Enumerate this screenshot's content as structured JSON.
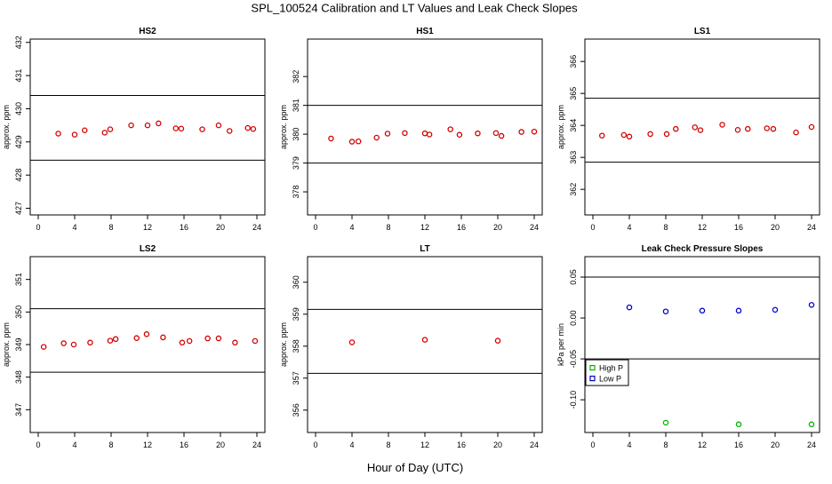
{
  "figure": {
    "title": "SPL_100524  Calibration and LT Values and Leak Check Slopes",
    "xlabel": "Hour of Day (UTC)"
  },
  "chart_data": [
    {
      "type": "scatter",
      "title": "HS2",
      "ylabel": "approx. ppm",
      "xlim": [
        0,
        24
      ],
      "ylim": [
        426.8,
        432.1
      ],
      "xticks": [
        0,
        4,
        8,
        12,
        16,
        20,
        24
      ],
      "yticks": [
        427,
        428,
        429,
        430,
        431,
        432
      ],
      "hlines": [
        428.45,
        430.4
      ],
      "point_color": "#d40000",
      "series": [
        {
          "x": [
            2.2,
            4.0,
            5.1,
            7.3,
            7.9,
            10.2,
            12.0,
            13.2,
            15.1,
            15.7,
            18.0,
            19.8,
            21.0,
            23.0,
            23.6
          ],
          "y": [
            429.25,
            429.22,
            429.35,
            429.28,
            429.38,
            429.5,
            429.5,
            429.56,
            429.41,
            429.4,
            429.38,
            429.5,
            429.33,
            429.42,
            429.39
          ]
        }
      ]
    },
    {
      "type": "scatter",
      "title": "HS1",
      "ylabel": "approx. ppm",
      "xlim": [
        0,
        24
      ],
      "ylim": [
        377.2,
        383.3
      ],
      "xticks": [
        0,
        4,
        8,
        12,
        16,
        20,
        24
      ],
      "yticks": [
        378,
        379,
        380,
        381,
        382
      ],
      "hlines": [
        379.0,
        381.0
      ],
      "point_color": "#d40000",
      "series": [
        {
          "x": [
            1.7,
            4.0,
            4.7,
            6.7,
            7.9,
            9.8,
            12.0,
            12.5,
            14.8,
            15.8,
            17.8,
            19.8,
            20.4,
            22.6,
            24.0
          ],
          "y": [
            379.85,
            379.74,
            379.75,
            379.88,
            380.02,
            380.04,
            380.03,
            379.99,
            380.17,
            379.98,
            380.03,
            380.04,
            379.94,
            380.08,
            380.09
          ]
        }
      ]
    },
    {
      "type": "scatter",
      "title": "LS1",
      "ylabel": "approx. ppm",
      "xlim": [
        0,
        24
      ],
      "ylim": [
        361.2,
        366.7
      ],
      "xticks": [
        0,
        4,
        8,
        12,
        16,
        20,
        24
      ],
      "yticks": [
        362,
        363,
        364,
        365,
        366
      ],
      "hlines": [
        362.85,
        364.85
      ],
      "point_color": "#d40000",
      "series": [
        {
          "x": [
            1.0,
            3.4,
            4.0,
            6.3,
            8.1,
            9.1,
            11.2,
            11.8,
            14.2,
            15.9,
            17.0,
            19.1,
            19.8,
            22.3,
            24.0
          ],
          "y": [
            363.68,
            363.7,
            363.65,
            363.73,
            363.73,
            363.89,
            363.94,
            363.85,
            364.02,
            363.86,
            363.89,
            363.91,
            363.89,
            363.78,
            363.95
          ]
        }
      ]
    },
    {
      "type": "scatter",
      "title": "LS2",
      "ylabel": "approx. ppm",
      "xlim": [
        0,
        24
      ],
      "ylim": [
        346.3,
        351.7
      ],
      "xticks": [
        0,
        4,
        8,
        12,
        16,
        20,
        24
      ],
      "yticks": [
        347,
        348,
        349,
        350,
        351
      ],
      "hlines": [
        348.15,
        350.1
      ],
      "point_color": "#d40000",
      "series": [
        {
          "x": [
            0.6,
            2.8,
            3.9,
            5.7,
            7.9,
            8.5,
            10.8,
            11.9,
            13.7,
            15.8,
            16.6,
            18.6,
            19.8,
            21.6,
            23.8
          ],
          "y": [
            348.93,
            349.04,
            349.0,
            349.06,
            349.12,
            349.17,
            349.2,
            349.32,
            349.22,
            349.06,
            349.11,
            349.19,
            349.19,
            349.06,
            349.11
          ]
        }
      ]
    },
    {
      "type": "scatter",
      "title": "LT",
      "ylabel": "approx. ppm",
      "xlim": [
        0,
        24
      ],
      "ylim": [
        355.3,
        360.8
      ],
      "xticks": [
        0,
        4,
        8,
        12,
        16,
        20,
        24
      ],
      "yticks": [
        356,
        357,
        358,
        359,
        360
      ],
      "hlines": [
        357.15,
        359.15
      ],
      "point_color": "#d40000",
      "series": [
        {
          "x": [
            4.0,
            12.0,
            20.0
          ],
          "y": [
            358.12,
            358.2,
            358.17
          ]
        }
      ]
    },
    {
      "type": "scatter",
      "title": "Leak Check Pressure Slopes",
      "ylabel": "kPa per min",
      "xlim": [
        0,
        24
      ],
      "ylim": [
        -0.14,
        0.075
      ],
      "xticks": [
        0,
        4,
        8,
        12,
        16,
        20,
        24
      ],
      "yticks": [
        -0.1,
        -0.05,
        0.0,
        0.05
      ],
      "ytick_labels": [
        "-0.10",
        "-0.05",
        "0.00",
        "0.05"
      ],
      "hlines": [
        -0.05,
        0.05
      ],
      "legend": {
        "position": "left",
        "entries": [
          "High P",
          "Low P"
        ]
      },
      "series": [
        {
          "name": "High P",
          "color": "#00b300",
          "x": [
            8,
            16,
            24
          ],
          "y": [
            -0.128,
            -0.13,
            -0.13
          ]
        },
        {
          "name": "Low P",
          "color": "#0000cc",
          "x": [
            4,
            8,
            12,
            16,
            20,
            24
          ],
          "y": [
            0.013,
            0.008,
            0.009,
            0.009,
            0.01,
            0.016
          ]
        }
      ]
    }
  ]
}
